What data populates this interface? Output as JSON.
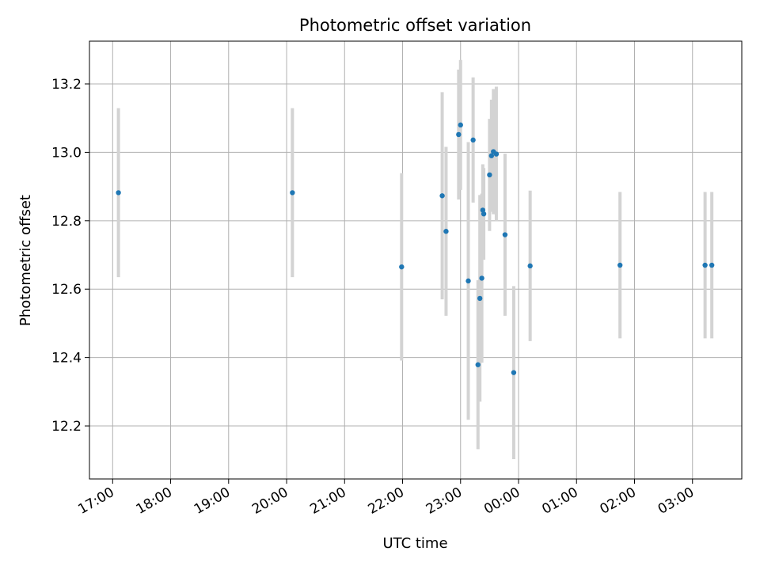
{
  "chart_data": {
    "type": "scatter",
    "title": "Photometric offset variation",
    "xlabel": "UTC time",
    "ylabel": "Photometric offset",
    "x_tick_labels": [
      "17:00",
      "18:00",
      "19:00",
      "20:00",
      "21:00",
      "22:00",
      "23:00",
      "00:00",
      "01:00",
      "02:00",
      "03:00"
    ],
    "x_range": [
      "16:36",
      "03:51"
    ],
    "ylim": [
      12.045,
      13.325
    ],
    "y_ticks": [
      12.2,
      12.4,
      12.6,
      12.8,
      13.0,
      13.2
    ],
    "grid": true,
    "legend": "none",
    "marker_color": "#1f77b4",
    "errorbar_color": "#d3d3d3",
    "points": [
      {
        "time": "17:06",
        "y": 12.882,
        "yerr": 0.247
      },
      {
        "time": "20:06",
        "y": 12.882,
        "yerr": 0.247
      },
      {
        "time": "21:59",
        "y": 12.665,
        "yerr": 0.274
      },
      {
        "time": "22:41",
        "y": 12.873,
        "yerr": 0.303
      },
      {
        "time": "22:45",
        "y": 12.769,
        "yerr": 0.247
      },
      {
        "time": "22:58",
        "y": 13.052,
        "yerr": 0.19
      },
      {
        "time": "23:00",
        "y": 13.08,
        "yerr": 0.19
      },
      {
        "time": "23:08",
        "y": 12.624,
        "yerr": 0.406
      },
      {
        "time": "23:13",
        "y": 13.036,
        "yerr": 0.183
      },
      {
        "time": "23:18",
        "y": 12.379,
        "yerr": 0.247
      },
      {
        "time": "23:20",
        "y": 12.573,
        "yerr": 0.302
      },
      {
        "time": "23:22",
        "y": 12.632,
        "yerr": 0.247
      },
      {
        "time": "23:23",
        "y": 12.831,
        "yerr": 0.134
      },
      {
        "time": "23:24",
        "y": 12.82,
        "yerr": 0.134
      },
      {
        "time": "23:30",
        "y": 12.934,
        "yerr": 0.164
      },
      {
        "time": "23:32",
        "y": 12.99,
        "yerr": 0.164
      },
      {
        "time": "23:34",
        "y": 13.002,
        "yerr": 0.183
      },
      {
        "time": "23:37",
        "y": 12.995,
        "yerr": 0.197
      },
      {
        "time": "23:46",
        "y": 12.759,
        "yerr": 0.237
      },
      {
        "time": "23:55",
        "y": 12.356,
        "yerr": 0.253
      },
      {
        "time": "00:12",
        "y": 12.668,
        "yerr": 0.22
      },
      {
        "time": "01:45",
        "y": 12.67,
        "yerr": 0.214
      },
      {
        "time": "03:13",
        "y": 12.67,
        "yerr": 0.214
      },
      {
        "time": "03:20",
        "y": 12.67,
        "yerr": 0.214
      }
    ]
  }
}
